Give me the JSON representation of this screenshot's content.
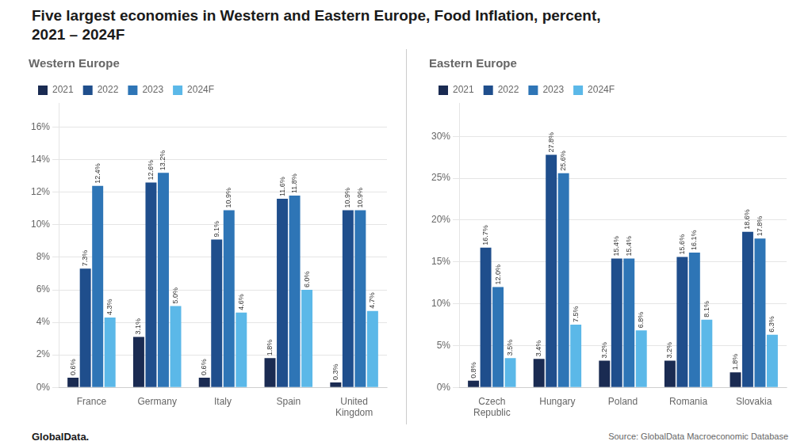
{
  "title": "Five largest economies in Western and Eastern Europe, Food Inflation, percent,\n2021 – 2024F",
  "annotations": [
    "GlobalData.",
    "Source: GlobalData Macroeconomic Database"
  ],
  "chart_data": [
    {
      "type": "bar",
      "title": "Western Europe",
      "categories": [
        "France",
        "Germany",
        "Italy",
        "Spain",
        "United\nKingdom"
      ],
      "series": [
        {
          "name": "2021",
          "color": "#1a2b52",
          "values": [
            0.6,
            3.1,
            0.6,
            1.8,
            0.3
          ],
          "value_labels": [
            "0.6%",
            "3.1%",
            "0.6%",
            "1.8%",
            "0.3%"
          ]
        },
        {
          "name": "2022",
          "color": "#1f4e8c",
          "values": [
            7.3,
            12.6,
            9.1,
            11.6,
            10.9
          ],
          "value_labels": [
            "7.3%",
            "12.6%",
            "9.1%",
            "11.6%",
            "10.9%"
          ]
        },
        {
          "name": "2023",
          "color": "#2e75b6",
          "values": [
            12.4,
            13.2,
            10.9,
            11.8,
            10.9
          ],
          "value_labels": [
            "12.4%",
            "13.2%",
            "10.9%",
            "11.8%",
            "10.9%"
          ]
        },
        {
          "name": "2024F",
          "color": "#5bb8e8",
          "values": [
            4.3,
            5.0,
            4.6,
            6.0,
            4.7
          ],
          "value_labels": [
            "4.3%",
            "5.0%",
            "4.6%",
            "6.0%",
            "4.7%"
          ]
        }
      ],
      "ylim": [
        0,
        17.5
      ],
      "yticks": [
        {
          "value": 0,
          "label": "0%"
        },
        {
          "value": 2,
          "label": "2%"
        },
        {
          "value": 4,
          "label": "4%"
        },
        {
          "value": 6,
          "label": "6%"
        },
        {
          "value": 8,
          "label": "8%"
        },
        {
          "value": 10,
          "label": "10%"
        },
        {
          "value": 12,
          "label": "12%"
        },
        {
          "value": 14,
          "label": "14%"
        },
        {
          "value": 16,
          "label": "16%"
        }
      ],
      "grid": true,
      "legend": "top",
      "data_labels": true
    },
    {
      "type": "bar",
      "title": "Eastern Europe",
      "categories": [
        "Czech\nRepublic",
        "Hungary",
        "Poland",
        "Romania",
        "Slovakia"
      ],
      "series": [
        {
          "name": "2021",
          "color": "#1a2b52",
          "values": [
            0.8,
            3.4,
            3.2,
            3.2,
            1.8
          ],
          "value_labels": [
            "0.8%",
            "3.4%",
            "3.2%",
            "3.2%",
            "1.8%"
          ]
        },
        {
          "name": "2022",
          "color": "#1f4e8c",
          "values": [
            16.7,
            27.8,
            15.4,
            15.6,
            18.6
          ],
          "value_labels": [
            "16.7%",
            "27.8%",
            "15.4%",
            "15.6%",
            "18.6%"
          ]
        },
        {
          "name": "2023",
          "color": "#2e75b6",
          "values": [
            12.0,
            25.6,
            15.4,
            16.1,
            17.8
          ],
          "value_labels": [
            "12.0%",
            "25.6%",
            "15.4%",
            "16.1%",
            "17.8%"
          ]
        },
        {
          "name": "2024F",
          "color": "#5bb8e8",
          "values": [
            3.5,
            7.5,
            6.8,
            8.1,
            6.3
          ],
          "value_labels": [
            "3.5%",
            "7.5%",
            "6.8%",
            "8.1%",
            "6.3%"
          ]
        }
      ],
      "ylim": [
        0,
        34
      ],
      "yticks": [
        {
          "value": 0,
          "label": "0%"
        },
        {
          "value": 5,
          "label": "5%"
        },
        {
          "value": 10,
          "label": "10%"
        },
        {
          "value": 15,
          "label": "15%"
        },
        {
          "value": 20,
          "label": "20%"
        },
        {
          "value": 25,
          "label": "25%"
        },
        {
          "value": 30,
          "label": "30%"
        }
      ],
      "grid": true,
      "legend": "top",
      "data_labels": true
    }
  ]
}
